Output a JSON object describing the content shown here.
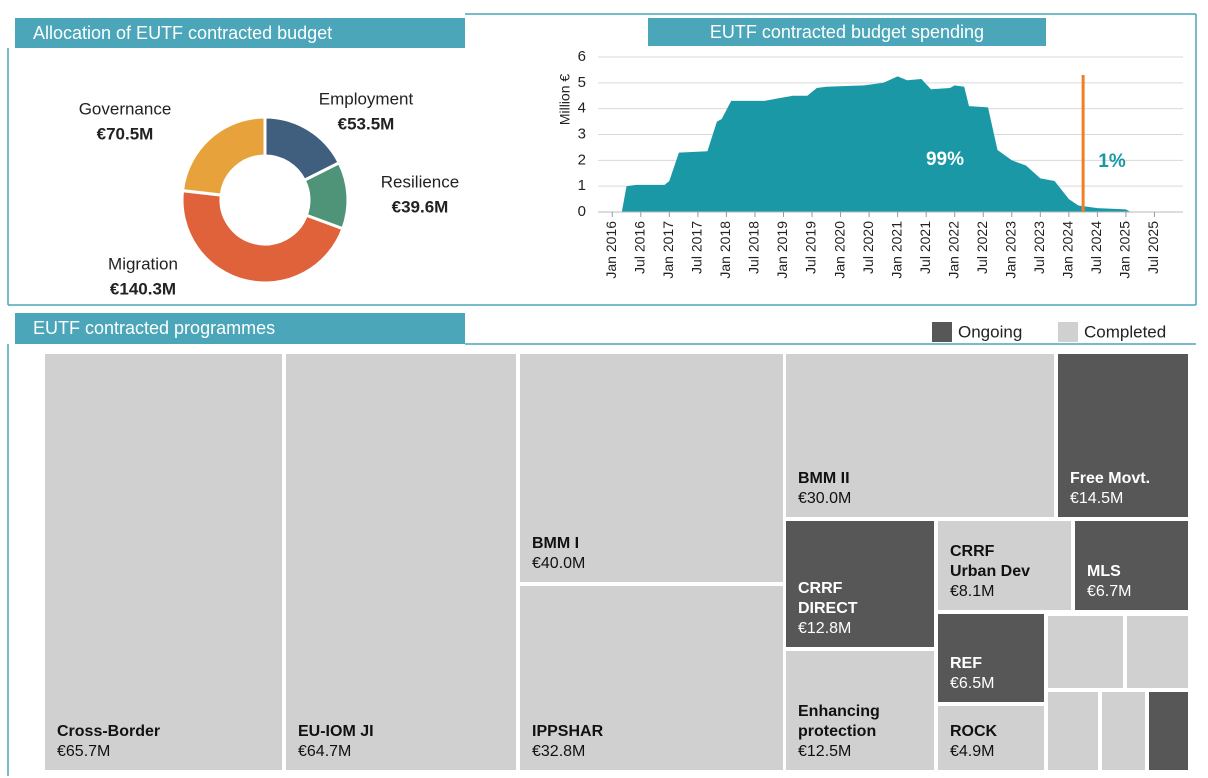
{
  "chart_data": [
    {
      "type": "donut",
      "title": "Allocation of EUTF contracted budget",
      "categories": [
        "Employment",
        "Resilience",
        "Migration",
        "Governance"
      ],
      "values": [
        53.5,
        39.6,
        140.3,
        70.5
      ],
      "value_labels": [
        "€53.5M",
        "€39.6M",
        "€140.3M",
        "€70.5M"
      ],
      "colors": [
        "#405f7f",
        "#4f9479",
        "#e0623a",
        "#e7a23b"
      ]
    },
    {
      "type": "area",
      "title": "EUTF contracted budget spending",
      "ylabel": "Million €",
      "x": [
        "2016-03",
        "2016-04",
        "2016-06",
        "2016-12",
        "2017-01",
        "2017-03",
        "2017-09",
        "2017-11",
        "2017-12",
        "2018-02",
        "2018-09",
        "2018-12",
        "2019-03",
        "2019-06",
        "2019-08",
        "2019-10",
        "2020-06",
        "2020-10",
        "2021-01",
        "2021-03",
        "2021-06",
        "2021-08",
        "2021-12",
        "2022-01",
        "2022-03",
        "2022-04",
        "2022-08",
        "2022-10",
        "2023-01",
        "2023-04",
        "2023-07",
        "2023-10",
        "2024-01",
        "2024-03",
        "2024-07",
        "2025-01",
        "2025-02"
      ],
      "values": [
        0,
        1.0,
        1.05,
        1.05,
        1.2,
        2.3,
        2.35,
        3.5,
        3.6,
        4.3,
        4.3,
        4.4,
        4.5,
        4.5,
        4.8,
        4.85,
        4.9,
        5.0,
        5.25,
        5.1,
        5.15,
        4.75,
        4.8,
        4.9,
        4.85,
        4.1,
        4.05,
        2.4,
        2.0,
        1.8,
        1.3,
        1.2,
        0.5,
        0.25,
        0.15,
        0.1,
        0
      ],
      "color": "#1b98a6",
      "xlim": [
        "2015-10",
        "2026-01"
      ],
      "xticks": [
        {
          "value": "2016-01",
          "label": "Jan 2016"
        },
        {
          "value": "2016-07",
          "label": "Jul 2016"
        },
        {
          "value": "2017-01",
          "label": "Jan 2017"
        },
        {
          "value": "2017-07",
          "label": "Jul 2017"
        },
        {
          "value": "2018-01",
          "label": "Jan 2018"
        },
        {
          "value": "2018-07",
          "label": "Jul 2018"
        },
        {
          "value": "2019-01",
          "label": "Jan 2019"
        },
        {
          "value": "2019-07",
          "label": "Jul 2019"
        },
        {
          "value": "2020-01",
          "label": "Jan 2020"
        },
        {
          "value": "2020-07",
          "label": "Jul 2020"
        },
        {
          "value": "2021-01",
          "label": "Jan 2021"
        },
        {
          "value": "2021-07",
          "label": "Jul 2021"
        },
        {
          "value": "2022-01",
          "label": "Jan 2022"
        },
        {
          "value": "2022-07",
          "label": "Jul 2022"
        },
        {
          "value": "2023-01",
          "label": "Jan 2023"
        },
        {
          "value": "2023-07",
          "label": "Jul 2023"
        },
        {
          "value": "2024-01",
          "label": "Jan 2024"
        },
        {
          "value": "2024-07",
          "label": "Jul 2024"
        },
        {
          "value": "2025-01",
          "label": "Jan 2025"
        },
        {
          "value": "2025-07",
          "label": "Jul 2025"
        }
      ],
      "ylim": [
        0,
        6
      ],
      "yticks": [
        0,
        1,
        2,
        3,
        4,
        5,
        6
      ],
      "grid": true,
      "marker_x": "2024-04",
      "marker_color": "#f07f2a",
      "annotations": [
        "99%",
        "1%"
      ]
    },
    {
      "type": "treemap",
      "title": "EUTF contracted programmes",
      "legend": [
        {
          "name": "Ongoing",
          "color": "#575757"
        },
        {
          "name": "Completed",
          "color": "#d0d0d0"
        }
      ],
      "items": [
        {
          "name": "Cross-Border",
          "value": 65.7,
          "value_label": "€65.7M",
          "status": "Completed"
        },
        {
          "name": "EU-IOM JI",
          "value": 64.7,
          "value_label": "€64.7M",
          "status": "Completed"
        },
        {
          "name": "BMM I",
          "value": 40.0,
          "value_label": "€40.0M",
          "status": "Completed"
        },
        {
          "name": "IPPSHAR",
          "value": 32.8,
          "value_label": "€32.8M",
          "status": "Completed"
        },
        {
          "name": "BMM II",
          "value": 30.0,
          "value_label": "€30.0M",
          "status": "Completed"
        },
        {
          "name": "Free Movt.",
          "value": 14.5,
          "value_label": "€14.5M",
          "status": "Ongoing"
        },
        {
          "name": "CRRF DIRECT",
          "value": 12.8,
          "value_label": "€12.8M",
          "status": "Ongoing"
        },
        {
          "name": "CRRF Urban Dev",
          "value": 8.1,
          "value_label": "€8.1M",
          "status": "Completed"
        },
        {
          "name": "MLS",
          "value": 6.7,
          "value_label": "€6.7M",
          "status": "Ongoing"
        },
        {
          "name": "Enhancing protection",
          "value": 12.5,
          "value_label": "€12.5M",
          "status": "Completed"
        },
        {
          "name": "REF",
          "value": 6.5,
          "value_label": "€6.5M",
          "status": "Ongoing"
        },
        {
          "name": "ROCK",
          "value": 4.9,
          "value_label": "€4.9M",
          "status": "Completed"
        },
        {
          "name": null,
          "value": 3.6,
          "status": "Completed"
        },
        {
          "name": null,
          "value": 2.8,
          "status": "Completed"
        },
        {
          "name": null,
          "value": 2.6,
          "status": "Completed"
        },
        {
          "name": null,
          "value": 2.2,
          "status": "Completed"
        },
        {
          "name": null,
          "value": 1.9,
          "status": "Ongoing"
        }
      ]
    }
  ]
}
